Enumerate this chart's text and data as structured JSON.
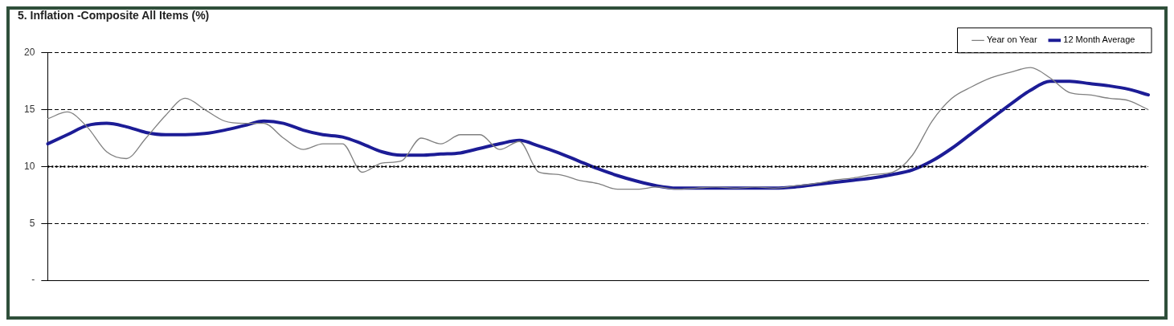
{
  "chart_data": {
    "type": "line",
    "title": "5. Inflation -Composite All Items (%)",
    "categories": [
      null,
      null,
      null,
      null,
      null,
      null,
      null,
      null,
      null,
      null,
      null,
      null,
      null,
      null,
      null,
      null,
      null,
      null,
      null,
      null,
      null,
      null,
      null,
      null,
      null,
      null,
      null,
      null,
      null,
      null,
      null,
      null,
      null,
      null,
      null,
      null,
      null,
      null,
      null,
      null,
      null,
      null,
      null,
      null,
      null,
      null,
      null,
      null,
      null,
      null,
      null,
      null,
      null,
      null,
      null,
      null,
      null
    ],
    "series": [
      {
        "name": "Year on Year",
        "color": "#808080",
        "values": [
          14.2,
          14.8,
          13.5,
          11.3,
          10.7,
          12.5,
          14.5,
          16.0,
          15.0,
          14.0,
          13.8,
          13.8,
          12.5,
          11.5,
          12.0,
          12.0,
          9.5,
          10.3,
          10.5,
          12.5,
          12.0,
          12.8,
          12.8,
          11.5,
          12.2,
          9.5,
          9.3,
          8.8,
          8.5,
          8.0,
          8.0,
          8.2,
          8.0,
          8.1,
          8.2,
          8.1,
          8.2,
          8.1,
          8.3,
          8.5,
          8.8,
          9.0,
          9.3,
          9.5,
          11.0,
          14.0,
          16.0,
          17.0,
          17.8,
          18.3,
          18.7,
          17.8,
          16.5,
          16.3,
          16.0,
          15.8,
          15.0
        ]
      },
      {
        "name": "12 Month Average",
        "color": "#1c1c96",
        "values": [
          12.0,
          12.8,
          13.6,
          13.8,
          13.5,
          13.0,
          12.8,
          12.8,
          12.9,
          13.2,
          13.6,
          14.0,
          13.8,
          13.2,
          12.8,
          12.6,
          12.0,
          11.3,
          11.0,
          11.0,
          11.1,
          11.2,
          11.6,
          12.0,
          12.3,
          11.8,
          11.2,
          10.5,
          9.8,
          9.2,
          8.7,
          8.3,
          8.1,
          8.1,
          8.1,
          8.1,
          8.1,
          8.1,
          8.2,
          8.4,
          8.6,
          8.8,
          9.0,
          9.3,
          9.7,
          10.5,
          11.6,
          12.9,
          14.2,
          15.5,
          16.7,
          17.5,
          17.5,
          17.3,
          17.1,
          16.8,
          16.3
        ]
      }
    ],
    "ylim": [
      0,
      20
    ],
    "yticks": [
      {
        "value": 0,
        "label": "-"
      },
      5,
      10,
      15,
      20
    ],
    "ref_lines": [
      {
        "axis": "y",
        "value": 10,
        "line_style": "dotted",
        "color": "#000000"
      }
    ],
    "grid": "y",
    "legend": "top right",
    "tick_labels": "y",
    "marker": "none",
    "line_style": "solid"
  }
}
